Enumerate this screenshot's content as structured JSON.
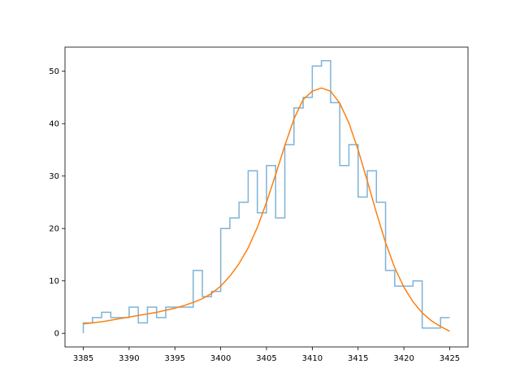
{
  "chart_data": {
    "type": "line",
    "title": "",
    "xlabel": "",
    "ylabel": "",
    "xlim": [
      3383.0,
      3427.0
    ],
    "ylim": [
      -2.6,
      54.6
    ],
    "x_ticks": [
      3385,
      3390,
      3395,
      3400,
      3405,
      3410,
      3415,
      3420,
      3425
    ],
    "y_ticks": [
      0,
      10,
      20,
      30,
      40,
      50
    ],
    "grid": false,
    "legend": "none",
    "colors": {
      "histogram": "#7fb2d6",
      "fit": "#ff7f0e",
      "axes": "#000000"
    },
    "series": [
      {
        "kind": "histogram-step",
        "bin_edges": [
          3385,
          3386,
          3387,
          3388,
          3389,
          3390,
          3391,
          3392,
          3393,
          3394,
          3395,
          3396,
          3397,
          3398,
          3399,
          3400,
          3401,
          3402,
          3403,
          3404,
          3405,
          3406,
          3407,
          3408,
          3409,
          3410,
          3411,
          3412,
          3413,
          3414,
          3415,
          3416,
          3417,
          3418,
          3419,
          3420,
          3421,
          3422,
          3423,
          3424,
          3425
        ],
        "counts": [
          2,
          3,
          4,
          3,
          3,
          5,
          2,
          5,
          3,
          5,
          5,
          5,
          12,
          7,
          8,
          20,
          22,
          25,
          31,
          23,
          32,
          22,
          36,
          43,
          45,
          51,
          52,
          44,
          32,
          36,
          26,
          31,
          25,
          12,
          9,
          9,
          10,
          1,
          1,
          3
        ]
      },
      {
        "kind": "fit-curve",
        "x": [
          3385,
          3386,
          3387,
          3388,
          3389,
          3390,
          3391,
          3392,
          3393,
          3394,
          3395,
          3396,
          3397,
          3398,
          3399,
          3400,
          3401,
          3402,
          3403,
          3404,
          3405,
          3406,
          3407,
          3408,
          3409,
          3410,
          3411,
          3412,
          3413,
          3414,
          3415,
          3416,
          3417,
          3418,
          3419,
          3420,
          3421,
          3422,
          3423,
          3424,
          3425
        ],
        "y": [
          1.8,
          2.0,
          2.2,
          2.5,
          2.8,
          3.1,
          3.4,
          3.7,
          4.0,
          4.4,
          4.8,
          5.3,
          5.9,
          6.6,
          7.6,
          9.0,
          10.9,
          13.3,
          16.3,
          20.2,
          25.0,
          30.3,
          35.8,
          40.9,
          44.6,
          46.2,
          46.8,
          46.2,
          43.9,
          40.1,
          35.0,
          29.1,
          23.0,
          17.3,
          12.5,
          8.8,
          6.0,
          3.9,
          2.4,
          1.3,
          0.4
        ]
      }
    ]
  }
}
